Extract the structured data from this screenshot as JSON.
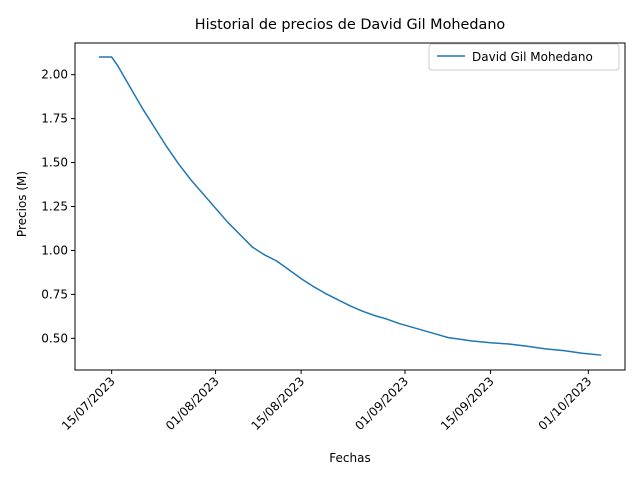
{
  "chart_data": {
    "type": "line",
    "title": "Historial de precios de David Gil Mohedano",
    "xlabel": "Fechas",
    "ylabel": "Precios (M)",
    "x_tick_labels": [
      "15/07/2023",
      "01/08/2023",
      "15/08/2023",
      "01/09/2023",
      "15/09/2023",
      "01/10/2023"
    ],
    "x_tick_dates": [
      "2023-07-15",
      "2023-08-01",
      "2023-08-15",
      "2023-09-01",
      "2023-09-15",
      "2023-10-01"
    ],
    "y_tick_labels": [
      "0.50",
      "0.75",
      "1.00",
      "1.25",
      "1.50",
      "1.75",
      "2.00"
    ],
    "y_ticks": [
      0.5,
      0.75,
      1.0,
      1.25,
      1.5,
      1.75,
      2.0
    ],
    "xlim": [
      "2023-07-09",
      "2023-10-07"
    ],
    "ylim": [
      0.32,
      2.18
    ],
    "legend_position": "top-right",
    "grid": false,
    "line_color": "#1f77b4",
    "series": [
      {
        "name": "David Gil Mohedano",
        "x": [
          "2023-07-13",
          "2023-07-15",
          "2023-07-16",
          "2023-07-18",
          "2023-07-20",
          "2023-07-22",
          "2023-07-24",
          "2023-07-26",
          "2023-07-28",
          "2023-07-30",
          "2023-08-01",
          "2023-08-03",
          "2023-08-05",
          "2023-08-07",
          "2023-08-09",
          "2023-08-11",
          "2023-08-13",
          "2023-08-15",
          "2023-08-17",
          "2023-08-19",
          "2023-08-21",
          "2023-08-23",
          "2023-08-25",
          "2023-08-27",
          "2023-08-29",
          "2023-08-31",
          "2023-09-02",
          "2023-09-04",
          "2023-09-06",
          "2023-09-08",
          "2023-09-10",
          "2023-09-12",
          "2023-09-15",
          "2023-09-18",
          "2023-09-21",
          "2023-09-24",
          "2023-09-27",
          "2023-09-30",
          "2023-10-03"
        ],
        "values": [
          2.1,
          2.1,
          2.05,
          1.93,
          1.81,
          1.7,
          1.59,
          1.49,
          1.4,
          1.32,
          1.24,
          1.16,
          1.09,
          1.02,
          0.975,
          0.94,
          0.89,
          0.84,
          0.795,
          0.755,
          0.72,
          0.685,
          0.655,
          0.63,
          0.61,
          0.585,
          0.565,
          0.545,
          0.525,
          0.505,
          0.495,
          0.485,
          0.475,
          0.468,
          0.455,
          0.44,
          0.43,
          0.415,
          0.405
        ]
      }
    ]
  }
}
